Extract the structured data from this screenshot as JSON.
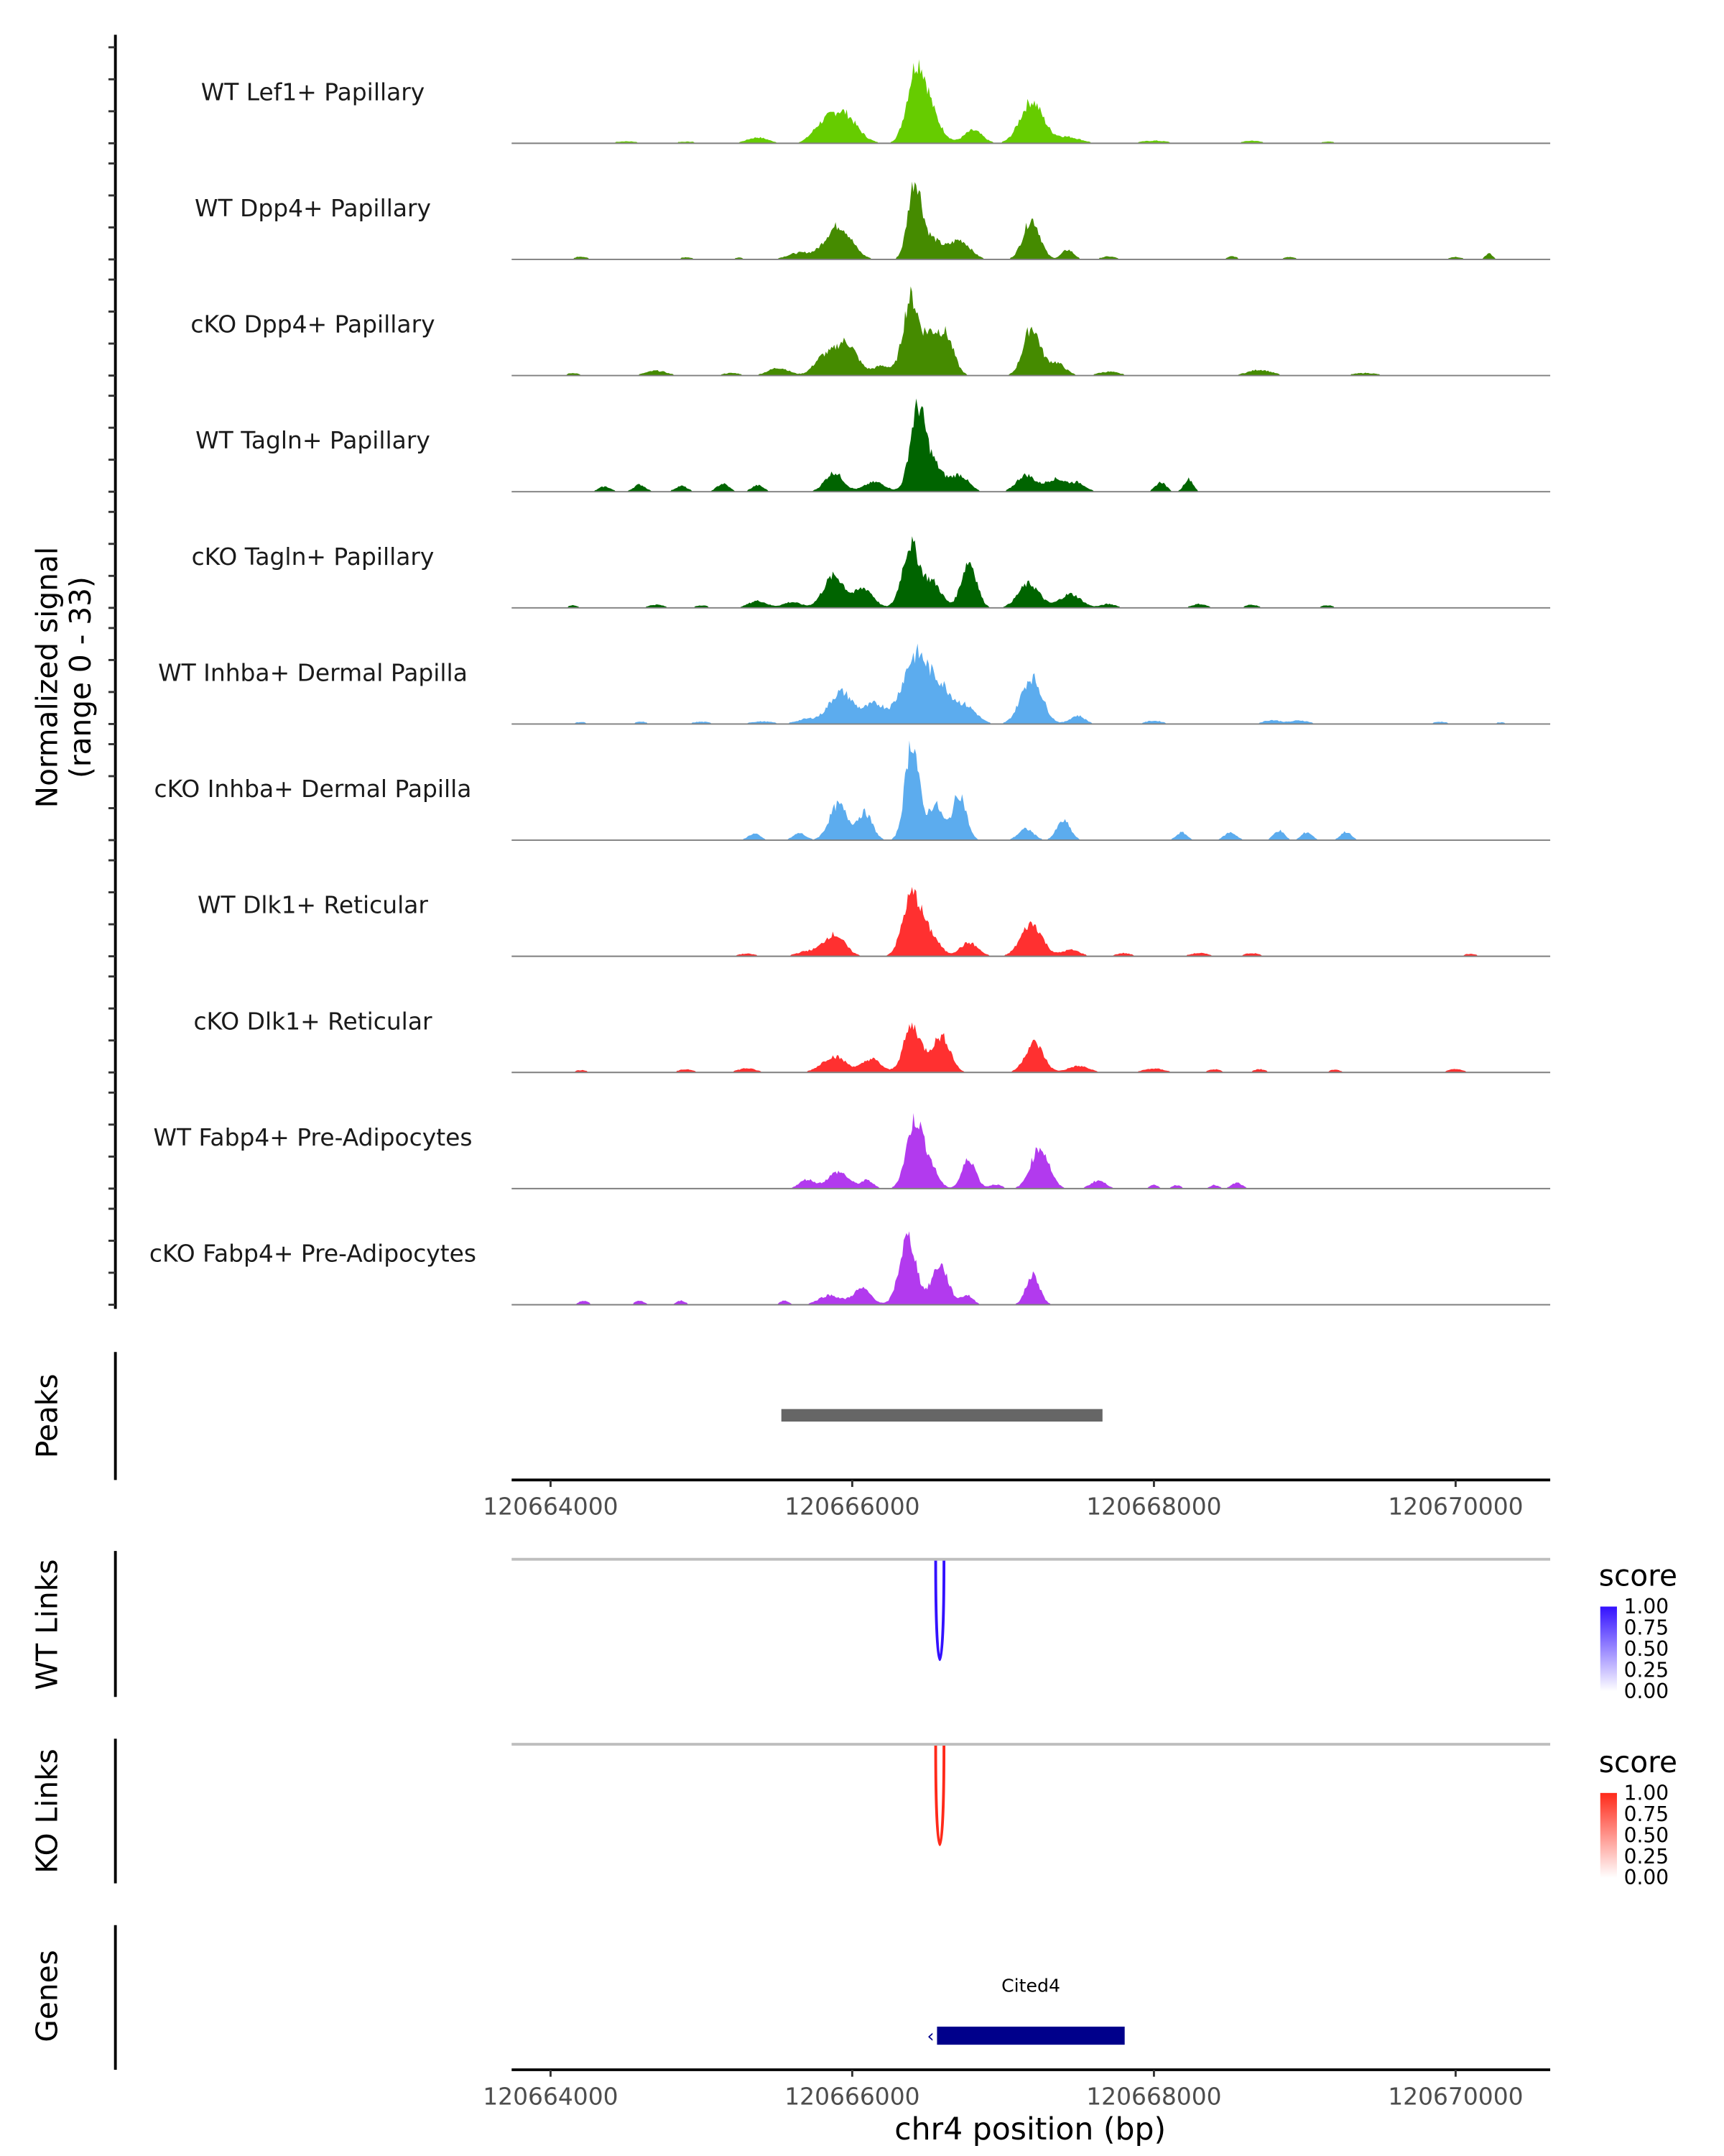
{
  "chart_data": {
    "type": "area",
    "title": "",
    "xlabel": "chr4 position (bp)",
    "ylabel": "Normalized signal",
    "ylabel_sub": "(range 0 - 33)",
    "ylim": [
      0,
      33
    ],
    "xlim": [
      120663742,
      120670627
    ],
    "x_ticks": [
      120664000,
      120666000,
      120668000,
      120670000
    ],
    "x_tick_labels": [
      "120664000",
      "120666000",
      "120668000",
      "120670000"
    ],
    "peak_format": "[position_bp, height, width_bp]",
    "tracks": [
      {
        "name": "WT Lef1+ Papillary",
        "color": "#66CC00",
        "peaks": [
          [
            120664500,
            0.6,
            80
          ],
          [
            120664900,
            0.5,
            80
          ],
          [
            120665373,
            1.8,
            70
          ],
          [
            120665926,
            10,
            95
          ],
          [
            120665780,
            3,
            60
          ],
          [
            120666424,
            22,
            60
          ],
          [
            120666520,
            8,
            70
          ],
          [
            120666802,
            4,
            60
          ],
          [
            120667189,
            13,
            75
          ],
          [
            120667420,
            2,
            90
          ],
          [
            120668000,
            0.8,
            90
          ],
          [
            120668650,
            0.8,
            60
          ],
          [
            120669150,
            0.5,
            60
          ]
        ]
      },
      {
        "name": "WT Dpp4+ Papillary",
        "color": "#458B00",
        "peaks": [
          [
            120664200,
            0.9,
            40
          ],
          [
            120664900,
            0.7,
            40
          ],
          [
            120665250,
            0.6,
            30
          ],
          [
            120665650,
            2,
            80
          ],
          [
            120665908,
            10.5,
            85
          ],
          [
            120666415,
            24,
            45
          ],
          [
            120666530,
            6,
            60
          ],
          [
            120666710,
            6,
            70
          ],
          [
            120667189,
            12.5,
            55
          ],
          [
            120667429,
            3,
            40
          ],
          [
            120667700,
            0.9,
            50
          ],
          [
            120668520,
            1,
            30
          ],
          [
            120668900,
            0.8,
            40
          ],
          [
            120670000,
            0.8,
            40
          ],
          [
            120670220,
            1.8,
            25
          ]
        ]
      },
      {
        "name": "cKO Dpp4+ Papillary",
        "color": "#458B00",
        "peaks": [
          [
            120664150,
            0.8,
            40
          ],
          [
            120664700,
            1.5,
            70
          ],
          [
            120665200,
            0.8,
            60
          ],
          [
            120665512,
            2.4,
            70
          ],
          [
            120665954,
            10.5,
            75
          ],
          [
            120665800,
            5,
            60
          ],
          [
            120666200,
            3,
            60
          ],
          [
            120666387,
            24,
            50
          ],
          [
            120666510,
            11,
            50
          ],
          [
            120666617,
            12.5,
            55
          ],
          [
            120667189,
            15,
            55
          ],
          [
            120667350,
            4,
            60
          ],
          [
            120667700,
            1.2,
            70
          ],
          [
            120668700,
            1.8,
            80
          ],
          [
            120669400,
            0.8,
            80
          ]
        ]
      },
      {
        "name": "WT Tagln+ Papillary",
        "color": "#006400",
        "peaks": [
          [
            120664359,
            1.6,
            40
          ],
          [
            120664590,
            2.2,
            40
          ],
          [
            120664866,
            1.8,
            40
          ],
          [
            120665143,
            2.5,
            40
          ],
          [
            120665373,
            2,
            40
          ],
          [
            120665880,
            6,
            60
          ],
          [
            120666150,
            3,
            70
          ],
          [
            120666433,
            25,
            50
          ],
          [
            120666540,
            8,
            60
          ],
          [
            120666710,
            5.2,
            60
          ],
          [
            120667150,
            5.2,
            60
          ],
          [
            120667350,
            4,
            70
          ],
          [
            120667500,
            2.5,
            50
          ],
          [
            120668046,
            3,
            35
          ],
          [
            120668230,
            4,
            30
          ]
        ]
      },
      {
        "name": "cKO Tagln+ Papillary",
        "color": "#006400",
        "peaks": [
          [
            120664150,
            0.8,
            30
          ],
          [
            120664700,
            1,
            50
          ],
          [
            120665000,
            0.8,
            40
          ],
          [
            120665373,
            2.2,
            60
          ],
          [
            120665600,
            1.8,
            60
          ],
          [
            120665880,
            10,
            70
          ],
          [
            120666080,
            6,
            60
          ],
          [
            120666387,
            19.5,
            55
          ],
          [
            120666530,
            8,
            60
          ],
          [
            120666774,
            14.5,
            50
          ],
          [
            120667171,
            7.5,
            70
          ],
          [
            120667447,
            4.3,
            70
          ],
          [
            120667700,
            1.2,
            50
          ],
          [
            120668300,
            1.2,
            50
          ],
          [
            120668650,
            1,
            40
          ],
          [
            120669150,
            0.8,
            40
          ]
        ]
      },
      {
        "name": "WT Inhba+ Dermal Papilla",
        "color": "#5CACEE",
        "peaks": [
          [
            120664200,
            0.6,
            40
          ],
          [
            120664600,
            0.7,
            40
          ],
          [
            120665000,
            0.7,
            60
          ],
          [
            120665400,
            0.8,
            80
          ],
          [
            120665700,
            1.5,
            70
          ],
          [
            120665926,
            10,
            80
          ],
          [
            120666150,
            6,
            70
          ],
          [
            120666424,
            21.5,
            90
          ],
          [
            120666600,
            9,
            70
          ],
          [
            120666756,
            5.2,
            70
          ],
          [
            120667189,
            14.5,
            70
          ],
          [
            120667493,
            2.6,
            50
          ],
          [
            120668000,
            1,
            60
          ],
          [
            120668783,
            1.2,
            60
          ],
          [
            120668968,
            1.1,
            60
          ],
          [
            120669900,
            0.7,
            50
          ],
          [
            120670300,
            0.5,
            40
          ]
        ]
      },
      {
        "name": "cKO Inhba+ Dermal Papilla",
        "color": "#5CACEE",
        "peaks": [
          [
            120665350,
            2,
            40
          ],
          [
            120665650,
            2.2,
            40
          ],
          [
            120665908,
            11,
            60
          ],
          [
            120666083,
            8.5,
            50
          ],
          [
            120666396,
            31,
            45
          ],
          [
            120666550,
            11,
            50
          ],
          [
            120666710,
            14.5,
            45
          ],
          [
            120667152,
            3.5,
            50
          ],
          [
            120667401,
            6,
            45
          ],
          [
            120668184,
            2.4,
            35
          ],
          [
            120668507,
            2.4,
            40
          ],
          [
            120668829,
            3,
            35
          ],
          [
            120669014,
            2.5,
            35
          ],
          [
            120669272,
            2.6,
            35
          ]
        ]
      },
      {
        "name": "WT Dlk1+ Reticular",
        "color": "#FF3030",
        "peaks": [
          [
            120665300,
            0.8,
            60
          ],
          [
            120665700,
            1.5,
            70
          ],
          [
            120665880,
            6.8,
            70
          ],
          [
            120666396,
            19,
            60
          ],
          [
            120666520,
            6,
            60
          ],
          [
            120666774,
            4.2,
            60
          ],
          [
            120667189,
            10.2,
            70
          ],
          [
            120667450,
            2,
            60
          ],
          [
            120667800,
            1,
            50
          ],
          [
            120668300,
            1,
            60
          ],
          [
            120668650,
            1,
            50
          ],
          [
            120670100,
            0.8,
            40
          ]
        ]
      },
      {
        "name": "cKO Dlk1+ Reticular",
        "color": "#FF3030",
        "peaks": [
          [
            120664200,
            0.7,
            40
          ],
          [
            120664900,
            1,
            50
          ],
          [
            120665300,
            1.3,
            60
          ],
          [
            120665880,
            5,
            80
          ],
          [
            120666129,
            4.2,
            60
          ],
          [
            120666396,
            14.5,
            55
          ],
          [
            120666560,
            7,
            60
          ],
          [
            120666617,
            5.8,
            50
          ],
          [
            120667207,
            9.3,
            60
          ],
          [
            120667500,
            2,
            70
          ],
          [
            120668000,
            1.2,
            70
          ],
          [
            120668400,
            1,
            40
          ],
          [
            120668700,
            1,
            40
          ],
          [
            120669200,
            0.8,
            40
          ],
          [
            120670000,
            1,
            50
          ]
        ]
      },
      {
        "name": "WT Fabp4+ Pre-Adipocytes",
        "color": "#B23AEE",
        "peaks": [
          [
            120665700,
            2.8,
            50
          ],
          [
            120665908,
            5.2,
            70
          ],
          [
            120666100,
            2.5,
            40
          ],
          [
            120666415,
            21,
            55
          ],
          [
            120666520,
            6,
            50
          ],
          [
            120666774,
            9.3,
            45
          ],
          [
            120666950,
            1.3,
            40
          ],
          [
            120667244,
            12.8,
            60
          ],
          [
            120667631,
            2.5,
            50
          ],
          [
            120668000,
            1.1,
            30
          ],
          [
            120668150,
            1.1,
            30
          ],
          [
            120668400,
            1.1,
            30
          ],
          [
            120668550,
            1.8,
            35
          ]
        ]
      },
      {
        "name": "cKO Fabp4+ Pre-Adipocytes",
        "color": "#B23AEE",
        "peaks": [
          [
            120664221,
            1.3,
            30
          ],
          [
            120664590,
            1.3,
            30
          ],
          [
            120664866,
            1.3,
            30
          ],
          [
            120665550,
            1.3,
            30
          ],
          [
            120665850,
            3,
            70
          ],
          [
            120666065,
            5,
            60
          ],
          [
            120666369,
            21,
            55
          ],
          [
            120666581,
            12.5,
            55
          ],
          [
            120666760,
            3,
            40
          ],
          [
            120667198,
            9.3,
            45
          ]
        ]
      }
    ],
    "peaks_track": {
      "label": "Peaks",
      "color": "#666666",
      "regions": [
        [
          120665530,
          120667659
        ]
      ]
    },
    "wt_links": {
      "label": "WT Links",
      "legend_title": "score",
      "legend_ticks": [
        "1.00",
        "0.75",
        "0.50",
        "0.25",
        "0.00"
      ],
      "color_high": "#3311FF",
      "color_low": "#FFFFFF",
      "links": [
        {
          "start": 120666553,
          "end": 120666608,
          "score": 0.95
        }
      ]
    },
    "ko_links": {
      "label": "KO Links",
      "legend_title": "score",
      "legend_ticks": [
        "1.00",
        "0.75",
        "0.50",
        "0.25",
        "0.00"
      ],
      "color_high": "#FF2A1A",
      "color_low": "#FFFFFF",
      "links": [
        {
          "start": 120666553,
          "end": 120666608,
          "score": 0.95
        }
      ]
    },
    "genes": {
      "label": "Genes",
      "color": "#00008B",
      "items": [
        {
          "name": "Cited4",
          "start": 120666562,
          "end": 120667806,
          "strand": "-"
        }
      ]
    }
  }
}
